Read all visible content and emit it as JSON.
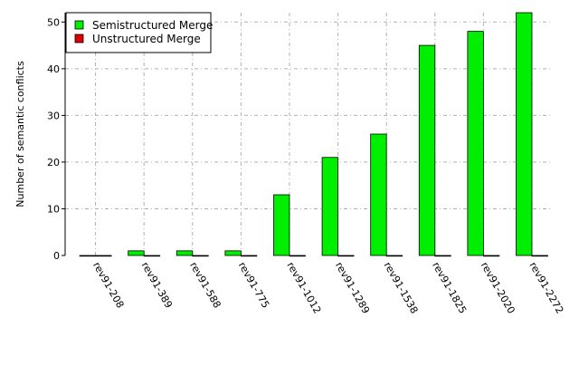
{
  "chart_data": {
    "type": "bar",
    "title": "",
    "xlabel": "",
    "ylabel": "Number of semantic conflicts",
    "categories": [
      "rev91-208",
      "rev91-389",
      "rev91-588",
      "rev91-775",
      "rev91-1012",
      "rev91-1289",
      "rev91-1538",
      "rev91-1825",
      "rev91-2020",
      "rev91-2272"
    ],
    "series": [
      {
        "name": "Semistructured Merge",
        "color": "#00ee00",
        "values": [
          0,
          1,
          1,
          1,
          13,
          21,
          26,
          45,
          48,
          52
        ]
      },
      {
        "name": "Unstructured Merge",
        "color": "#dd0000",
        "values": [
          0,
          0,
          0,
          0,
          0,
          0,
          0,
          0,
          0,
          0
        ]
      }
    ],
    "ylim": [
      0,
      52
    ],
    "yticks": [
      0,
      10,
      20,
      30,
      40,
      50
    ],
    "grid": true,
    "legend_position": "top-left"
  }
}
